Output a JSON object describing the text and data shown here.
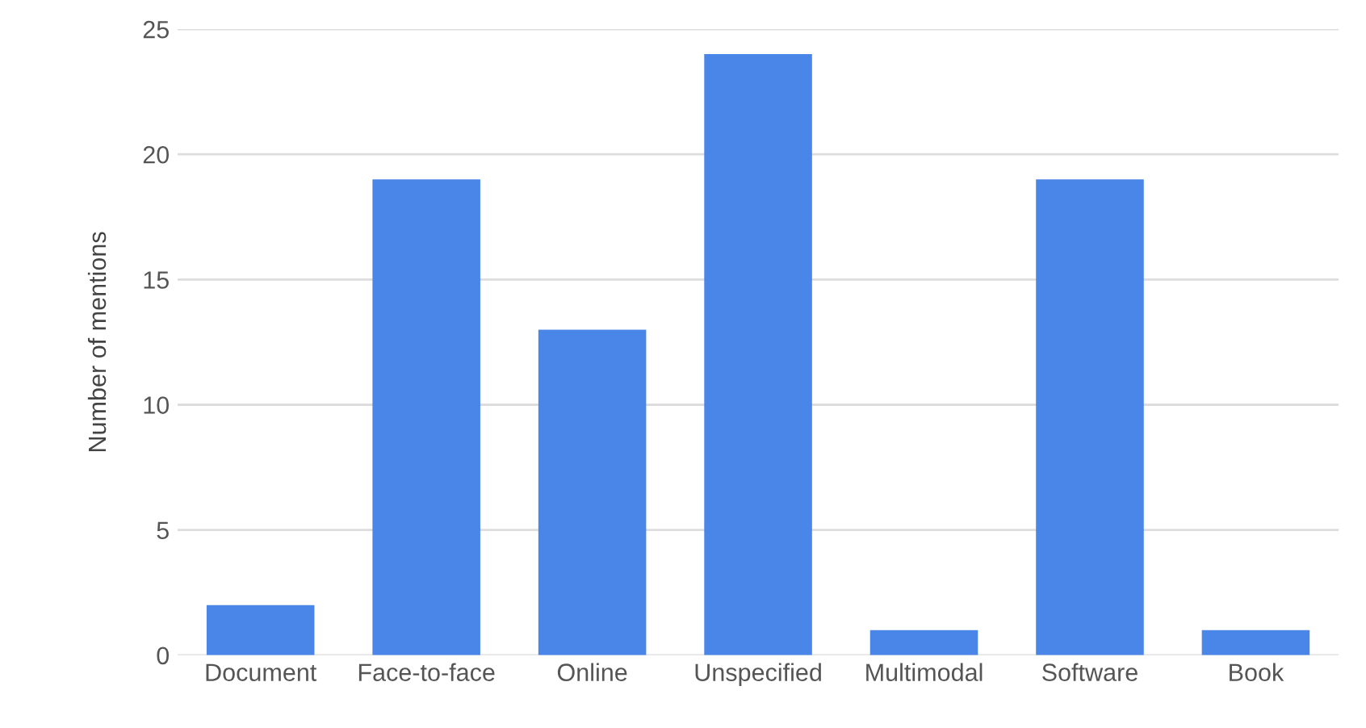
{
  "chart_data": {
    "type": "bar",
    "ylabel": "Number of mentions",
    "categories": [
      "Document",
      "Face-to-face",
      "Online",
      "Unspecified",
      "Multimodal",
      "Software",
      "Book"
    ],
    "values": [
      2,
      19,
      13,
      24,
      1,
      19,
      1
    ],
    "color": "#4a86e8",
    "ylim": [
      0,
      25
    ],
    "yticks": [
      0,
      5,
      10,
      15,
      20,
      25
    ],
    "grid": "y"
  }
}
